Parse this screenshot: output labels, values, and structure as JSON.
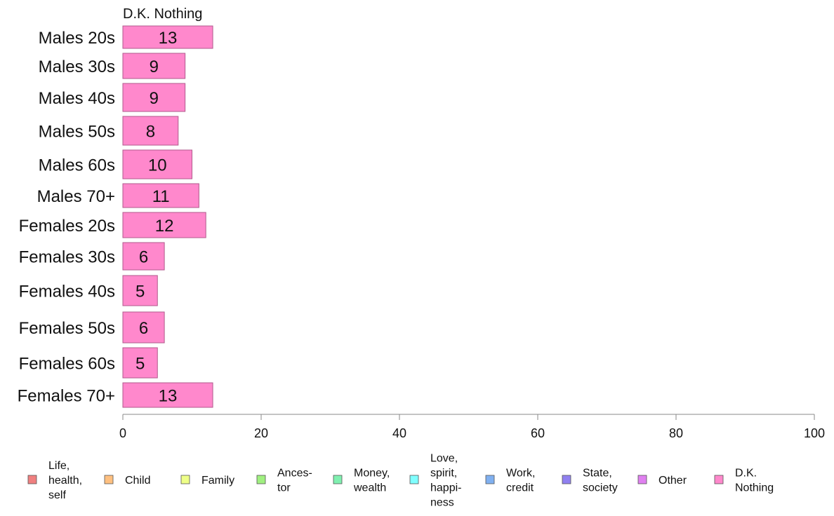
{
  "chart_data": {
    "type": "bar",
    "orientation": "horizontal",
    "series_title": "D.K. Nothing",
    "categories": [
      "Males 20s",
      "Males 30s",
      "Males 40s",
      "Males 50s",
      "Males 60s",
      "Males 70+",
      "Females 20s",
      "Females 30s",
      "Females 40s",
      "Females 50s",
      "Females 60s",
      "Females 70+"
    ],
    "series": [
      {
        "name": "D.K. Nothing",
        "color": "#ff88cc",
        "values": [
          13,
          9,
          9,
          8,
          10,
          11,
          12,
          6,
          5,
          6,
          5,
          13
        ]
      }
    ],
    "bar_labels": [
      "13",
      "9",
      "9",
      "8",
      "10",
      "11",
      "12",
      "6",
      "5",
      "6",
      "5",
      "13"
    ],
    "xlim": [
      0,
      100
    ],
    "xticks": [
      0,
      20,
      40,
      60,
      80,
      100
    ],
    "xtick_labels": [
      "0",
      "20",
      "40",
      "60",
      "80",
      "100"
    ],
    "xlabel": "",
    "ylabel": "",
    "grid": false,
    "legend_position": "bottom",
    "legend": [
      {
        "lines": [
          "Life,",
          "health,",
          "self"
        ],
        "color": "#f08080"
      },
      {
        "lines": [
          "Child"
        ],
        "color": "#ffc080"
      },
      {
        "lines": [
          "Family"
        ],
        "color": "#eeff88"
      },
      {
        "lines": [
          "Ances-",
          "tor"
        ],
        "color": "#a0f080"
      },
      {
        "lines": [
          "Money,",
          "wealth"
        ],
        "color": "#80f0b0"
      },
      {
        "lines": [
          "Love,",
          "spirit,",
          "happi-",
          "ness"
        ],
        "color": "#80ffff"
      },
      {
        "lines": [
          "Work,",
          "credit"
        ],
        "color": "#80b0f0"
      },
      {
        "lines": [
          "State,",
          "society"
        ],
        "color": "#9080f0"
      },
      {
        "lines": [
          "Other"
        ],
        "color": "#e080f0"
      },
      {
        "lines": [
          "D.K.",
          "Nothing"
        ],
        "color": "#ff88cc"
      }
    ]
  }
}
